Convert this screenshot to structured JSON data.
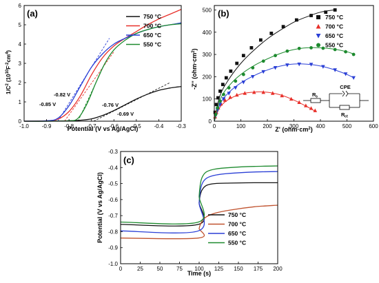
{
  "panels": [
    {
      "id": "a",
      "panel_label": "(a)",
      "xlabel": "Potential (V vs Ag/AgCl)",
      "ylabel_main": "1/C",
      "ylabel_sup1": "2",
      "ylabel_mid": " (10",
      "ylabel_sup2": "10",
      "ylabel_unit": "F",
      "ylabel_sup3": "-2",
      "ylabel_unit2": "cm",
      "ylabel_sup4": "4",
      "ylabel_end": ")",
      "xticks": [
        "-1.0",
        "-0.9",
        "-0.8",
        "-0.7",
        "-0.6",
        "-0.5",
        "-0.4",
        "-0.3"
      ],
      "yticks": [
        "0",
        "1",
        "2",
        "3",
        "4",
        "5",
        "6"
      ],
      "annotations": [
        "-0.85 V",
        "-0.82 V",
        "-0.76 V",
        "-0.69 V"
      ],
      "legend": [
        {
          "label": "750 °C",
          "color": "#111111"
        },
        {
          "label": "700 °C",
          "color": "#e8302a"
        },
        {
          "label": "650 °C",
          "color": "#2a3fd6"
        },
        {
          "label": "550 °C",
          "color": "#1d8a2e"
        }
      ]
    },
    {
      "id": "b",
      "panel_label": "(b)",
      "xlabel": "Z' (ohm·cm",
      "xlabel_sup": "2",
      "xlabel_end": ")",
      "ylabel": "-Z'' (ohm·cm",
      "ylabel_sup": "2",
      "ylabel_end": ")",
      "xticks": [
        "0",
        "100",
        "200",
        "300",
        "400",
        "500",
        "600"
      ],
      "yticks": [
        "0",
        "100",
        "200",
        "300",
        "400",
        "500"
      ],
      "circuit_labels": {
        "rs": "R",
        "rs_sub": "s",
        "cpe": "CPE",
        "rct": "R",
        "rct_sub": "ct"
      },
      "legend": [
        {
          "label": "750 °C",
          "color": "#111111",
          "marker": "square"
        },
        {
          "label": "700 °C",
          "color": "#e8302a",
          "marker": "triangle-up"
        },
        {
          "label": "650 °C",
          "color": "#2a3fd6",
          "marker": "triangle-down"
        },
        {
          "label": "550 °C",
          "color": "#1d8a2e",
          "marker": "circle"
        }
      ]
    },
    {
      "id": "c",
      "panel_label": "(c)",
      "xlabel": "Time (s)",
      "ylabel": "Potential (V vs Ag/AgCl)",
      "xticks": [
        "0",
        "25",
        "50",
        "75",
        "100",
        "125",
        "150",
        "175",
        "200"
      ],
      "yticks": [
        "-0.3",
        "-0.4",
        "-0.5",
        "-0.6",
        "-0.7",
        "-0.8",
        "-0.9",
        "-1.0"
      ],
      "legend": [
        {
          "label": "750 °C",
          "color": "#111111"
        },
        {
          "label": "700 °C",
          "color": "#c0522e"
        },
        {
          "label": "650 °C",
          "color": "#2a3fd6"
        },
        {
          "label": "550 °C",
          "color": "#1d8a2e"
        }
      ]
    }
  ],
  "chart_data": [
    {
      "panel": "a",
      "type": "line",
      "title": "",
      "xlabel": "Potential (V vs Ag/AgCl)",
      "ylabel": "1/C2 (10^10 F^-2 cm^4)",
      "xlim": [
        -1.0,
        -0.3
      ],
      "ylim": [
        0,
        6
      ],
      "series": [
        {
          "name": "750 °C",
          "color": "#111111",
          "x": [
            -1.0,
            -0.9,
            -0.8,
            -0.75,
            -0.7,
            -0.65,
            -0.6,
            -0.55,
            -0.5,
            -0.45,
            -0.4,
            -0.35,
            -0.3
          ],
          "y": [
            0.0,
            0.0,
            0.02,
            0.05,
            0.12,
            0.3,
            0.55,
            0.85,
            1.15,
            1.4,
            1.6,
            1.72,
            1.8
          ]
        },
        {
          "name": "700 °C",
          "color": "#e8302a",
          "x": [
            -1.0,
            -0.9,
            -0.85,
            -0.8,
            -0.75,
            -0.7,
            -0.65,
            -0.6,
            -0.55,
            -0.5,
            -0.45,
            -0.4,
            -0.35,
            -0.3
          ],
          "y": [
            0.0,
            0.02,
            0.1,
            0.5,
            1.3,
            2.4,
            3.3,
            3.9,
            4.3,
            4.65,
            5.0,
            5.3,
            5.55,
            5.8
          ]
        },
        {
          "name": "650 °C",
          "color": "#2a3fd6",
          "x": [
            -1.0,
            -0.9,
            -0.85,
            -0.8,
            -0.75,
            -0.7,
            -0.65,
            -0.6,
            -0.55,
            -0.5,
            -0.45,
            -0.4,
            -0.35,
            -0.3
          ],
          "y": [
            0.0,
            0.02,
            0.15,
            0.8,
            1.8,
            2.8,
            3.5,
            4.0,
            4.3,
            4.55,
            4.75,
            4.9,
            5.0,
            5.1
          ]
        },
        {
          "name": "550 °C",
          "color": "#1d8a2e",
          "x": [
            -1.0,
            -0.9,
            -0.8,
            -0.76,
            -0.72,
            -0.68,
            -0.64,
            -0.6,
            -0.55,
            -0.5,
            -0.45,
            -0.4,
            -0.35,
            -0.3
          ],
          "y": [
            0.0,
            0.0,
            0.02,
            0.15,
            0.9,
            2.0,
            3.0,
            3.7,
            4.2,
            4.55,
            4.75,
            4.9,
            5.0,
            5.05
          ]
        }
      ],
      "fit_lines": [
        {
          "series": "750 °C",
          "x": [
            -0.69,
            -0.35
          ],
          "y": [
            0.0,
            2.0
          ],
          "color": "#111111"
        },
        {
          "series": "700 °C",
          "x": [
            -0.82,
            -0.6
          ],
          "y": [
            0.0,
            3.6
          ],
          "color": "#e8302a"
        },
        {
          "series": "650 °C",
          "x": [
            -0.85,
            -0.62
          ],
          "y": [
            0.0,
            4.3
          ],
          "color": "#2a3fd6"
        },
        {
          "series": "550 °C",
          "x": [
            -0.76,
            -0.66
          ],
          "y": [
            0.0,
            2.5
          ],
          "color": "#1d8a2e"
        }
      ],
      "annotations": [
        {
          "text": "-0.85 V",
          "x": -0.85
        },
        {
          "text": "-0.82 V",
          "x": -0.82
        },
        {
          "text": "-0.76 V",
          "x": -0.76
        },
        {
          "text": "-0.69 V",
          "x": -0.69
        }
      ]
    },
    {
      "panel": "b",
      "type": "scatter",
      "title": "",
      "xlabel": "Z' (ohm·cm2)",
      "ylabel": "-Z'' (ohm·cm2)",
      "xlim": [
        0,
        600
      ],
      "ylim": [
        0,
        520
      ],
      "series": [
        {
          "name": "750 °C",
          "color": "#111111",
          "marker": "square",
          "x": [
            3,
            8,
            14,
            22,
            32,
            45,
            62,
            85,
            110,
            140,
            175,
            215,
            260,
            310,
            365,
            420,
            455
          ],
          "y": [
            40,
            75,
            105,
            135,
            165,
            195,
            225,
            260,
            295,
            330,
            365,
            395,
            425,
            455,
            475,
            490,
            500
          ],
          "fit_x": [
            0,
            20,
            50,
            100,
            150,
            200,
            250,
            300,
            350,
            400,
            450
          ],
          "fit_y": [
            0,
            110,
            180,
            260,
            320,
            370,
            410,
            445,
            470,
            490,
            500
          ]
        },
        {
          "name": "700 °C",
          "color": "#e8302a",
          "marker": "triangle-up",
          "x": [
            3,
            8,
            15,
            25,
            40,
            60,
            85,
            115,
            150,
            185,
            220,
            255,
            290,
            320,
            345,
            365,
            380
          ],
          "y": [
            20,
            40,
            60,
            78,
            95,
            108,
            118,
            126,
            130,
            130,
            126,
            115,
            100,
            85,
            70,
            58,
            48
          ],
          "fit_x": [
            0,
            20,
            50,
            100,
            150,
            200,
            250,
            300,
            350,
            380
          ],
          "fit_y": [
            0,
            60,
            95,
            122,
            131,
            130,
            118,
            95,
            65,
            45
          ]
        },
        {
          "name": "650 °C",
          "color": "#2a3fd6",
          "marker": "triangle-down",
          "x": [
            5,
            12,
            22,
            35,
            55,
            80,
            110,
            145,
            185,
            230,
            275,
            320,
            365,
            410,
            455,
            495,
            525
          ],
          "y": [
            25,
            50,
            75,
            100,
            125,
            150,
            175,
            200,
            222,
            240,
            252,
            256,
            255,
            245,
            230,
            212,
            195
          ],
          "fit_x": [
            0,
            25,
            60,
            100,
            150,
            200,
            250,
            300,
            350,
            400,
            450,
            500,
            525
          ],
          "fit_y": [
            0,
            85,
            135,
            172,
            205,
            230,
            248,
            257,
            256,
            248,
            232,
            210,
            195
          ]
        },
        {
          "name": "550 °C",
          "color": "#1d8a2e",
          "marker": "circle",
          "x": [
            5,
            12,
            22,
            35,
            55,
            80,
            110,
            145,
            185,
            230,
            275,
            320,
            365,
            410,
            455,
            495,
            525
          ],
          "y": [
            30,
            60,
            90,
            120,
            150,
            180,
            210,
            240,
            270,
            295,
            315,
            327,
            330,
            328,
            322,
            312,
            300
          ],
          "fit_x": [
            0,
            25,
            60,
            100,
            150,
            200,
            250,
            300,
            350,
            400,
            450,
            500,
            525
          ],
          "fit_y": [
            0,
            105,
            165,
            210,
            250,
            280,
            305,
            322,
            330,
            330,
            324,
            312,
            302
          ]
        }
      ]
    },
    {
      "panel": "c",
      "type": "line",
      "title": "",
      "xlabel": "Time (s)",
      "ylabel": "Potential (V vs Ag/AgCl)",
      "xlim": [
        0,
        200
      ],
      "ylim": [
        -1.0,
        -0.3
      ],
      "series": [
        {
          "name": "750 °C",
          "color": "#111111",
          "x": [
            0,
            99,
            100,
            102,
            105,
            110,
            120,
            140,
            170,
            200
          ],
          "y": [
            -0.755,
            -0.755,
            -0.62,
            -0.56,
            -0.53,
            -0.51,
            -0.5,
            -0.497,
            -0.495,
            -0.495
          ]
        },
        {
          "name": "700 °C",
          "color": "#c0522e",
          "x": [
            0,
            99,
            100,
            102,
            105,
            110,
            120,
            140,
            170,
            200
          ],
          "y": [
            -0.84,
            -0.84,
            -0.78,
            -0.75,
            -0.725,
            -0.705,
            -0.685,
            -0.665,
            -0.645,
            -0.635
          ]
        },
        {
          "name": "650 °C",
          "color": "#2a3fd6",
          "x": [
            0,
            99,
            100,
            102,
            105,
            110,
            120,
            140,
            170,
            200
          ],
          "y": [
            -0.795,
            -0.795,
            -0.62,
            -0.53,
            -0.49,
            -0.465,
            -0.448,
            -0.436,
            -0.428,
            -0.425
          ]
        },
        {
          "name": "550 °C",
          "color": "#1d8a2e",
          "x": [
            0,
            99,
            100,
            102,
            105,
            110,
            120,
            140,
            170,
            200
          ],
          "y": [
            -0.74,
            -0.74,
            -0.58,
            -0.49,
            -0.45,
            -0.425,
            -0.41,
            -0.4,
            -0.393,
            -0.39
          ]
        }
      ]
    }
  ]
}
